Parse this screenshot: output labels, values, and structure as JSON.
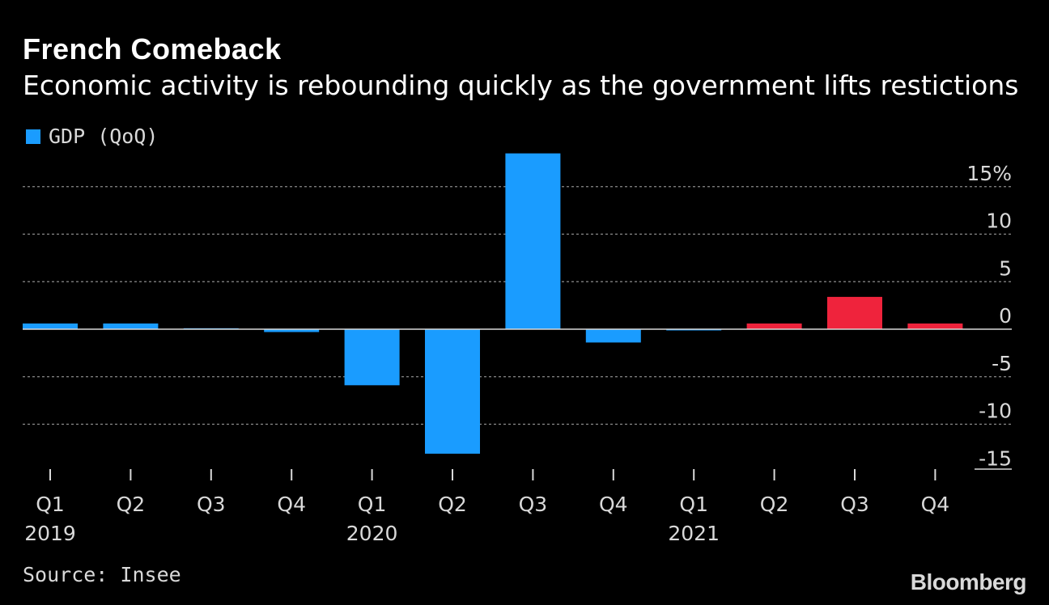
{
  "title": "French Comeback",
  "subtitle": "Economic activity is rebounding quickly as the government lifts restictions",
  "legend": {
    "label": "GDP (QoQ)"
  },
  "source": "Source: Insee",
  "logo": "Bloomberg",
  "colors": {
    "actual": "#1a9cff",
    "forecast": "#ef233c",
    "background": "#000000",
    "grid": "#8c8c8c"
  },
  "chart_data": {
    "type": "bar",
    "categories": [
      "Q1",
      "Q2",
      "Q3",
      "Q4",
      "Q1",
      "Q2",
      "Q3",
      "Q4",
      "Q1",
      "Q2",
      "Q3",
      "Q4"
    ],
    "year_labels": [
      "2019",
      "",
      "",
      "",
      "2020",
      "",
      "",
      "",
      "2021",
      "",
      "",
      ""
    ],
    "series": [
      {
        "name": "GDP (QoQ)",
        "values": [
          0.6,
          0.6,
          0.1,
          -0.3,
          -5.9,
          -13.1,
          18.5,
          -1.4,
          -0.1,
          0.6,
          3.4,
          0.6
        ],
        "forecast": [
          false,
          false,
          false,
          false,
          false,
          false,
          false,
          false,
          false,
          true,
          true,
          true
        ]
      }
    ],
    "yticks": [
      15,
      10,
      5,
      0,
      -5,
      -10,
      -15
    ],
    "ytick_labels": [
      "15%",
      "10",
      "5",
      "0",
      "-5",
      "-10",
      "-15"
    ],
    "ylim": [
      -15,
      18.5
    ],
    "grid": true,
    "legend_position": "top-left",
    "xlabel": "",
    "ylabel": ""
  }
}
